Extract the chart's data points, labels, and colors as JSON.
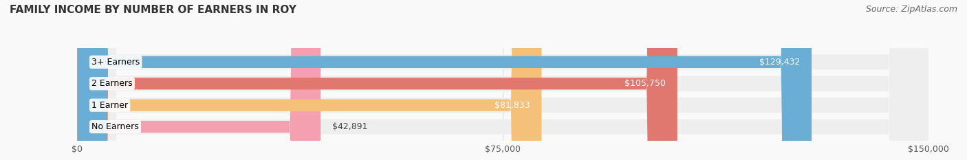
{
  "title": "FAMILY INCOME BY NUMBER OF EARNERS IN ROY",
  "source": "Source: ZipAtlas.com",
  "categories": [
    "No Earners",
    "1 Earner",
    "2 Earners",
    "3+ Earners"
  ],
  "values": [
    42891,
    81833,
    105750,
    129432
  ],
  "labels": [
    "$42,891",
    "$81,833",
    "$105,750",
    "$129,432"
  ],
  "bar_colors": [
    "#f4a0b0",
    "#f5c07a",
    "#e07870",
    "#6aaed6"
  ],
  "track_color": "#eeeeee",
  "x_ticks": [
    0,
    75000,
    150000
  ],
  "x_tick_labels": [
    "$0",
    "$75,000",
    "$150,000"
  ],
  "xlim": [
    0,
    150000
  ],
  "background_color": "#f9f9f9",
  "title_fontsize": 11,
  "source_fontsize": 9,
  "bar_label_fontsize": 9,
  "category_label_fontsize": 9,
  "tick_fontsize": 9
}
